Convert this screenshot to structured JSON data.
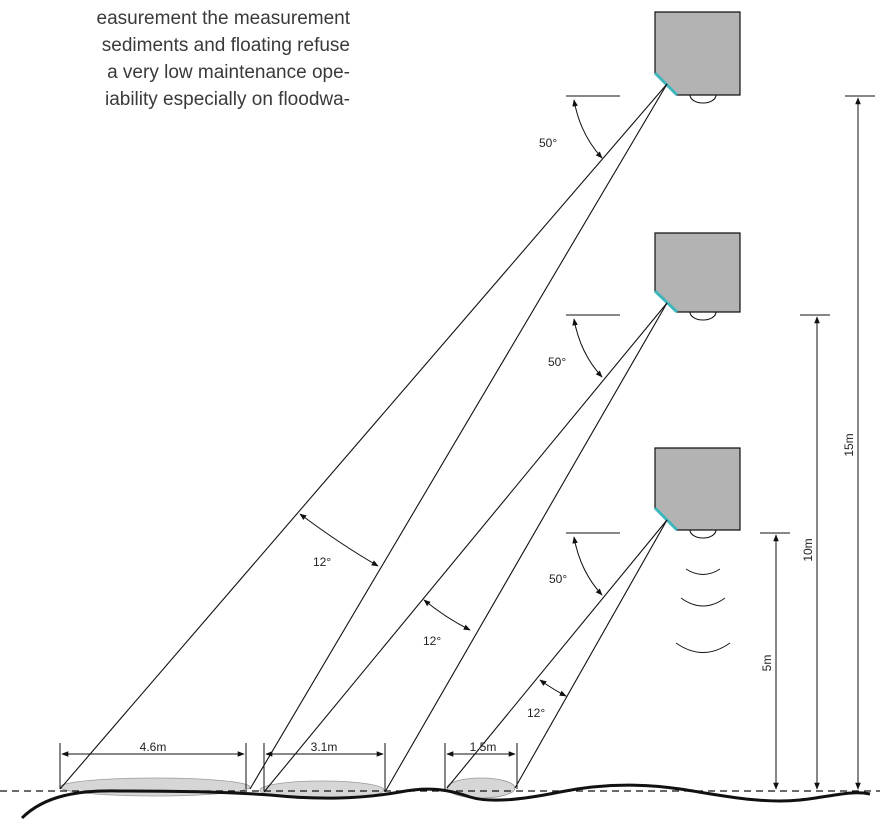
{
  "paragraph_lines": [
    "easurement the measurement",
    "sediments and floating refuse",
    "a very low maintenance ope-",
    "iability especially on floodwa-"
  ],
  "sensors": [
    {
      "height_label": "15m",
      "angle_label": "50°",
      "beam_label": "12°",
      "footprint_label": "4.6m"
    },
    {
      "height_label": "10m",
      "angle_label": "50°",
      "beam_label": "12°",
      "footprint_label": "3.1m"
    },
    {
      "height_label": "5m",
      "angle_label": "50°",
      "beam_label": "12°",
      "footprint_label": "1.5m"
    }
  ],
  "colors": {
    "sensor_body": "#b3b3b3",
    "sensor_face": "#3fb6bd",
    "footprint": "#d6d6d6",
    "line": "#111111"
  }
}
